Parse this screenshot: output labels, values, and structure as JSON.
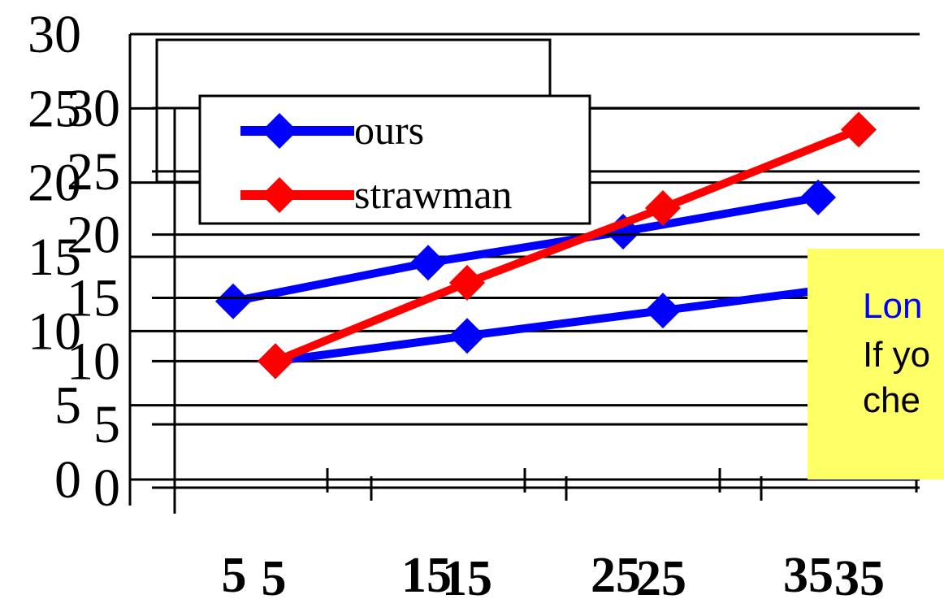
{
  "chart_data": [
    {
      "type": "line",
      "categories": [
        "5",
        "15",
        "25",
        "35"
      ],
      "series": [
        {
          "name": "ours",
          "values": [
            12,
            14.6,
            16.7,
            19
          ],
          "color": "#0000ff"
        }
      ],
      "y_ticks": [
        "0",
        "5",
        "10",
        "15",
        "20",
        "25",
        "30"
      ],
      "ylim": [
        0,
        30
      ],
      "grid": true,
      "legend": {
        "position": "top-left",
        "entries": [
          "ours"
        ]
      },
      "marker": "diamond"
    },
    {
      "type": "line",
      "categories": [
        "5",
        "15",
        "25",
        "35"
      ],
      "series": [
        {
          "name": "ours",
          "values": [
            10,
            12,
            14,
            16
          ],
          "color": "#0000ff"
        },
        {
          "name": "strawman",
          "values": [
            10,
            16.2,
            22.1,
            28.3
          ],
          "color": "#ff0000"
        }
      ],
      "y_ticks": [
        "0",
        "5",
        "10",
        "15",
        "20",
        "25",
        "30"
      ],
      "ylim": [
        0,
        30
      ],
      "grid": true,
      "legend": {
        "position": "top-left",
        "entries": [
          "ours",
          "strawman"
        ]
      },
      "marker": "diamond"
    }
  ],
  "callout": {
    "title": "Lon",
    "line2": "If yo",
    "line3": "che",
    "background": "#ffff66",
    "title_color": "#0000ff"
  }
}
